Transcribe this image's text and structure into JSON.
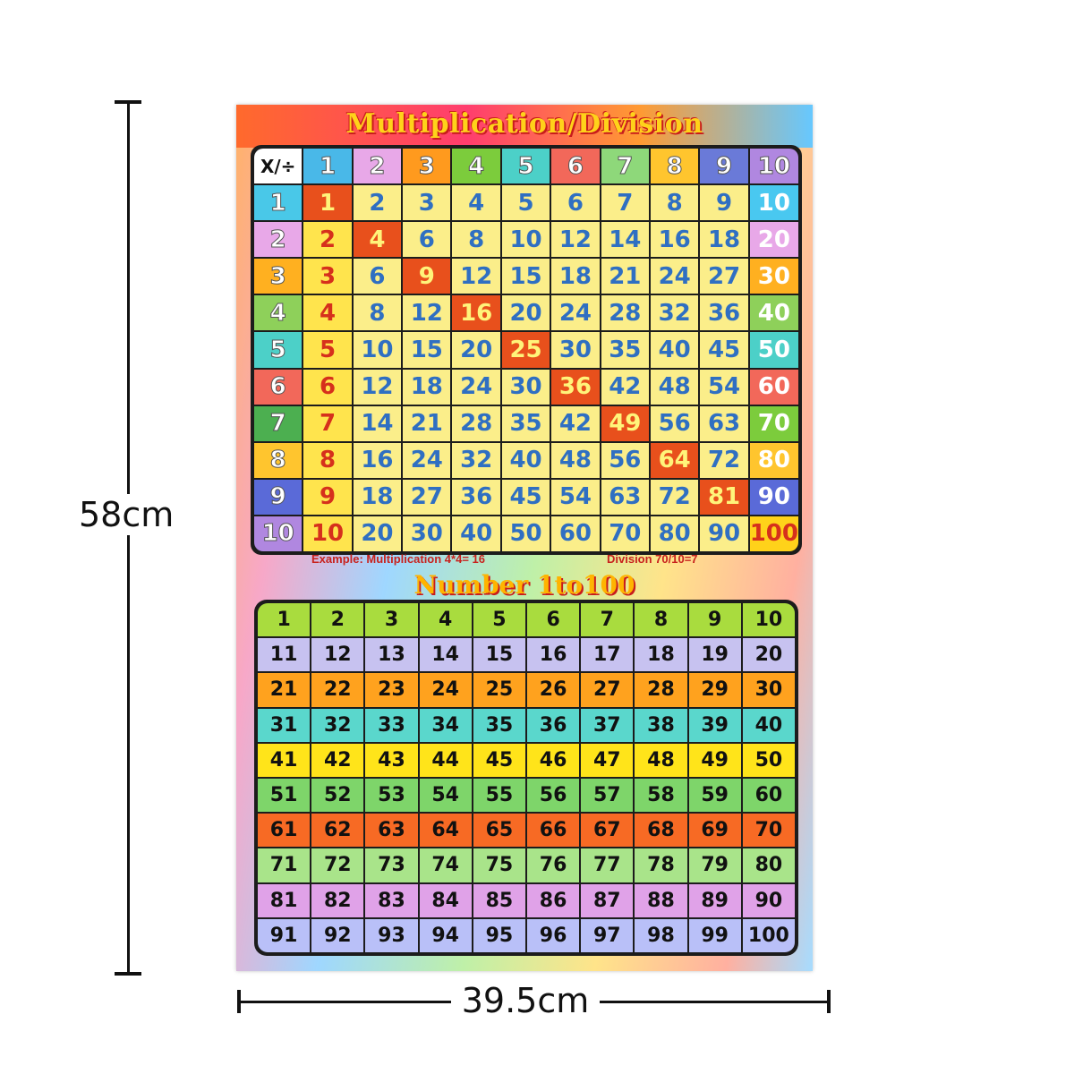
{
  "dimensions": {
    "height_label": "58cm",
    "width_label": "39.5cm"
  },
  "poster": {
    "title": "Multiplication/Division",
    "corner_label": "X/÷",
    "example_multiplication": "Example: Multiplication 4*4= 16",
    "example_division": "Division 70/10=7",
    "number_title": "Number 1to100"
  },
  "colors": {
    "header_cols": [
      "#49b8e8",
      "#e8a8e8",
      "#ff9a1e",
      "#7ccc3c",
      "#4cd0c8",
      "#f2685a",
      "#8ed87a",
      "#ffc52e",
      "#6a7ad8",
      "#b087e0"
    ],
    "side_rows": [
      "#49c8e8",
      "#e8a8e8",
      "#ffb020",
      "#8ed05a",
      "#4cd0c8",
      "#f2685a",
      "#4caf50",
      "#ffc52e",
      "#5a6ad8",
      "#b087e0"
    ],
    "col10_bg": [
      "#49c8f0",
      "#e8a8e8",
      "#ffb020",
      "#8ed05a",
      "#4cd0c8",
      "#f2685a",
      "#7ccc3c",
      "#ffc52e",
      "#5a6ad8",
      "#ffd21a"
    ],
    "number_rows": [
      "#a9dc3e",
      "#c7c2f0",
      "#ffa21e",
      "#5ad7cc",
      "#ffe41a",
      "#7ed56a",
      "#f76a24",
      "#a9e48a",
      "#e0a2e8",
      "#b9c0f8"
    ]
  },
  "multiplication_table": {
    "headers": [
      "1",
      "2",
      "3",
      "4",
      "5",
      "6",
      "7",
      "8",
      "9",
      "10"
    ],
    "rows": [
      [
        "1",
        "2",
        "3",
        "4",
        "5",
        "6",
        "7",
        "8",
        "9",
        "10"
      ],
      [
        "2",
        "4",
        "6",
        "8",
        "10",
        "12",
        "14",
        "16",
        "18",
        "20"
      ],
      [
        "3",
        "6",
        "9",
        "12",
        "15",
        "18",
        "21",
        "24",
        "27",
        "30"
      ],
      [
        "4",
        "8",
        "12",
        "16",
        "20",
        "24",
        "28",
        "32",
        "36",
        "40"
      ],
      [
        "5",
        "10",
        "15",
        "20",
        "25",
        "30",
        "35",
        "40",
        "45",
        "50"
      ],
      [
        "6",
        "12",
        "18",
        "24",
        "30",
        "36",
        "42",
        "48",
        "54",
        "60"
      ],
      [
        "7",
        "14",
        "21",
        "28",
        "35",
        "42",
        "49",
        "56",
        "63",
        "70"
      ],
      [
        "8",
        "16",
        "24",
        "32",
        "40",
        "48",
        "56",
        "64",
        "72",
        "80"
      ],
      [
        "9",
        "18",
        "27",
        "36",
        "45",
        "54",
        "63",
        "72",
        "81",
        "90"
      ],
      [
        "10",
        "20",
        "30",
        "40",
        "50",
        "60",
        "70",
        "80",
        "90",
        "100"
      ]
    ]
  },
  "number_chart": {
    "rows": [
      [
        "1",
        "2",
        "3",
        "4",
        "5",
        "6",
        "7",
        "8",
        "9",
        "10"
      ],
      [
        "11",
        "12",
        "13",
        "14",
        "15",
        "16",
        "17",
        "18",
        "19",
        "20"
      ],
      [
        "21",
        "22",
        "23",
        "24",
        "25",
        "26",
        "27",
        "28",
        "29",
        "30"
      ],
      [
        "31",
        "32",
        "33",
        "34",
        "35",
        "36",
        "37",
        "38",
        "39",
        "40"
      ],
      [
        "41",
        "42",
        "43",
        "44",
        "45",
        "46",
        "47",
        "48",
        "49",
        "50"
      ],
      [
        "51",
        "52",
        "53",
        "54",
        "55",
        "56",
        "57",
        "58",
        "59",
        "60"
      ],
      [
        "61",
        "62",
        "63",
        "64",
        "65",
        "66",
        "67",
        "68",
        "69",
        "70"
      ],
      [
        "71",
        "72",
        "73",
        "74",
        "75",
        "76",
        "77",
        "78",
        "79",
        "80"
      ],
      [
        "81",
        "82",
        "83",
        "84",
        "85",
        "86",
        "87",
        "88",
        "89",
        "90"
      ],
      [
        "91",
        "92",
        "93",
        "94",
        "95",
        "96",
        "97",
        "98",
        "99",
        "100"
      ]
    ]
  }
}
